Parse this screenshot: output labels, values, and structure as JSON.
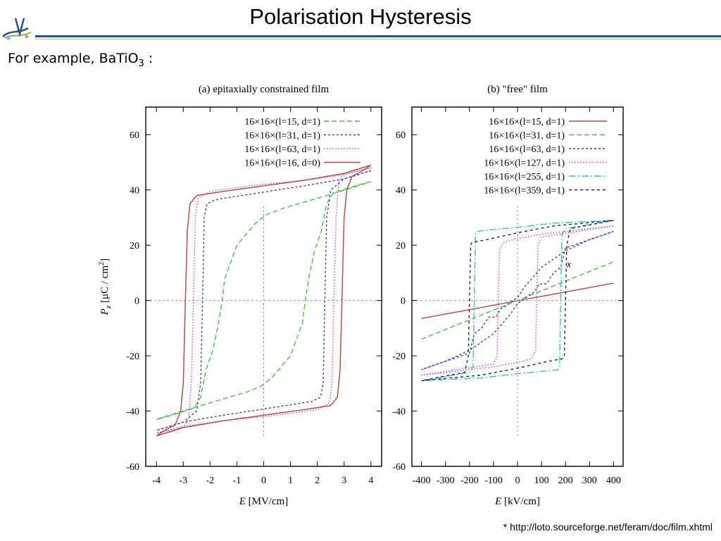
{
  "slide": {
    "title": "Polarisation Hysteresis",
    "subtitle_prefix": "For example, BaTiO",
    "subtitle_sub": "3",
    "subtitle_suffix": " :",
    "footnote": "* http://loto.sourceforge.net/feram/doc/film.xhtml",
    "accent_color": "#2a4f8f"
  },
  "chart_data": [
    {
      "type": "line",
      "title": "(a) epitaxially constrained film",
      "xlabel_var": "E",
      "xlabel_unit": " [MV/cm]",
      "ylabel_var": "P",
      "ylabel_sub": "z",
      "ylabel_unit": " [μC / cm",
      "ylabel_sup": "2",
      "ylabel_close": "]",
      "xlim": [
        -4.4,
        4.4
      ],
      "ylim": [
        -60,
        70
      ],
      "xticks": [
        -4,
        -3,
        -2,
        -1,
        0,
        1,
        2,
        3,
        4
      ],
      "yticks": [
        -60,
        -40,
        -20,
        0,
        20,
        40,
        60
      ],
      "legend_position": "top-right",
      "series": [
        {
          "name": "16×16×(l=15, d=1)",
          "color": "#3cc83c",
          "dash": "7,4",
          "x": [
            4,
            3.6,
            2.6,
            2.35,
            2.15,
            1.9,
            1.7,
            1.55,
            1.45,
            1.0,
            0.3,
            -0.1,
            -0.6,
            -2.0,
            -3.2,
            -4,
            -3.6,
            -2.6,
            -2.35,
            -2.15,
            -1.9,
            -1.7,
            -1.55,
            -1.45,
            -1.0,
            -0.3,
            0.1,
            0.6,
            2.0,
            3.2,
            4
          ],
          "y": [
            43,
            42,
            39,
            35,
            25,
            18,
            9,
            0,
            -8,
            -20,
            -28,
            -31,
            -33,
            -37,
            -40.5,
            -43,
            -42,
            -39,
            -35,
            -25,
            -18,
            -9,
            0,
            8,
            20,
            28,
            31,
            33,
            37,
            40.5,
            43
          ]
        },
        {
          "name": "16×16×(l=31, d=1)",
          "color": "#3a3ac8",
          "dash": "3,3",
          "x": [
            4,
            3.0,
            2.5,
            2.35,
            2.28,
            2.22,
            2.12,
            1.8,
            0.5,
            -1.5,
            -3.0,
            -4,
            -3.0,
            -2.5,
            -2.35,
            -2.28,
            -2.22,
            -2.12,
            -1.8,
            -0.5,
            1.5,
            3.0,
            4
          ],
          "y": [
            47,
            44,
            40,
            30,
            0,
            -30,
            -35,
            -36.5,
            -38.5,
            -41.5,
            -44,
            -47,
            -44,
            -40,
            -30,
            0,
            30,
            35,
            36.5,
            38.5,
            41.5,
            44,
            47
          ]
        },
        {
          "name": "16×16×(l=63, d=1)",
          "color": "#d040d8",
          "dash": "1.5,2.5",
          "x": [
            4,
            3.0,
            2.8,
            2.7,
            2.62,
            2.55,
            2.45,
            2.0,
            0.5,
            -1.5,
            -3.0,
            -4,
            -3.0,
            -2.8,
            -2.7,
            -2.62,
            -2.55,
            -2.45,
            -2.0,
            -0.5,
            1.5,
            3.0,
            4
          ],
          "y": [
            48,
            46,
            43,
            30,
            0,
            -30,
            -37,
            -39.5,
            -41.5,
            -43.5,
            -45.5,
            -48,
            -46,
            -43,
            -30,
            0,
            30,
            37,
            39.5,
            41.5,
            43.5,
            45.5,
            48
          ]
        },
        {
          "name": "16×16×(l=16, d=0)",
          "color": "#c04040",
          "dash": "",
          "x": [
            4,
            3.7,
            3.3,
            3.1,
            3.0,
            2.92,
            2.85,
            2.75,
            2.5,
            1.5,
            0,
            -1.5,
            -3.0,
            -4,
            -3.7,
            -3.3,
            -3.1,
            -3.0,
            -2.92,
            -2.85,
            -2.75,
            -2.5,
            -1.5,
            0,
            1.5,
            3.0,
            4
          ],
          "y": [
            49,
            47,
            45,
            40,
            30,
            0,
            -25,
            -35,
            -38,
            -39.5,
            -41.5,
            -43.5,
            -46,
            -49,
            -47,
            -45,
            -40,
            -30,
            0,
            25,
            35,
            38,
            39.5,
            41.5,
            43.5,
            46,
            49
          ]
        }
      ]
    },
    {
      "type": "line",
      "title": "(b) \"free\" film",
      "xlabel_var": "E",
      "xlabel_unit": " [kV/cm]",
      "xlim": [
        -440,
        440
      ],
      "ylim": [
        -60,
        70
      ],
      "xticks": [
        -400,
        -300,
        -200,
        -100,
        0,
        100,
        200,
        300,
        400
      ],
      "yticks": [
        -60,
        -40,
        -20,
        0,
        20,
        40,
        60
      ],
      "legend_position": "top-right",
      "annotation": "x",
      "annotation_at": [
        205,
        12
      ],
      "series": [
        {
          "name": "16×16×(l=15, d=1)",
          "color": "#c04040",
          "dash": "",
          "x": [
            -400,
            400
          ],
          "y": [
            -6.5,
            6.3
          ]
        },
        {
          "name": "16×16×(l=31, d=1)",
          "color": "#3cc83c",
          "dash": "7,4",
          "x": [
            -400,
            400
          ],
          "y": [
            -14,
            14
          ]
        },
        {
          "name": "16×16×(l=63, d=1)",
          "color": "#3a3ac8",
          "dash": "3,3",
          "x": [
            400,
            200,
            180,
            150,
            120,
            90,
            70,
            50,
            20,
            0,
            -30,
            -60,
            -100,
            -150,
            -200,
            -300,
            -400,
            -200,
            -180,
            -150,
            -120,
            -90,
            -70,
            -50,
            -20,
            0,
            30,
            60,
            100,
            150,
            200,
            300,
            400
          ],
          "y": [
            25,
            19,
            12,
            10,
            6,
            6,
            3,
            2,
            0,
            -1,
            -5,
            -8,
            -12,
            -15,
            -18,
            -22,
            -25,
            -19,
            -12,
            -10,
            -6,
            -6,
            -3,
            -2,
            0,
            1,
            5,
            8,
            12,
            15,
            18,
            22,
            25
          ]
        },
        {
          "name": "16×16×(l=127, d=1)",
          "color": "#d040d8",
          "dash": "1.5,2.5",
          "x": [
            400,
            100,
            85,
            80,
            75,
            60,
            20,
            -100,
            -400,
            -100,
            -85,
            -80,
            -75,
            -60,
            -20,
            100,
            400
          ],
          "y": [
            27,
            23,
            20,
            0,
            -18,
            -21,
            -22,
            -24,
            -27,
            -23,
            -20,
            0,
            18,
            21,
            22,
            24,
            27
          ]
        },
        {
          "name": "16×16×(l=255, d=1)",
          "color": "#30c0d0",
          "dash": "10,3,2,3",
          "x": [
            400,
            200,
            185,
            180,
            175,
            170,
            120,
            0,
            -150,
            -400,
            -200,
            -185,
            -180,
            -175,
            -170,
            -120,
            0,
            150,
            400
          ],
          "y": [
            29,
            26,
            24,
            0,
            -24,
            -25,
            -25.5,
            -26.5,
            -28,
            -29,
            -26,
            -24,
            0,
            24,
            25,
            25.5,
            26.5,
            28,
            29
          ]
        },
        {
          "name": "16×16×(l=359, d=1)",
          "color": "#202050",
          "dash": "4,4",
          "x": [
            400,
            220,
            205,
            200,
            195,
            190,
            130,
            0,
            -150,
            -400,
            -220,
            -205,
            -200,
            -195,
            -190,
            -130,
            0,
            150,
            400
          ],
          "y": [
            29,
            26,
            20,
            0,
            -20,
            -21,
            -22,
            -24.5,
            -27,
            -29,
            -26,
            -20,
            0,
            20,
            21,
            22,
            24.5,
            27,
            29
          ]
        }
      ]
    }
  ]
}
